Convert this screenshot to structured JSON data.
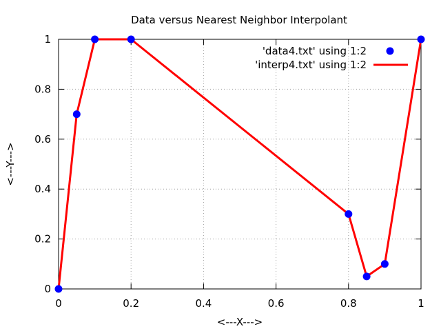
{
  "chart_data": {
    "type": "line",
    "title": "Data versus Nearest Neighbor Interpolant",
    "xlabel": "<---X--->",
    "ylabel": "<---Y--->",
    "xlim": [
      0,
      1
    ],
    "ylim": [
      0,
      1
    ],
    "xticks": [
      "0",
      "0.2",
      "0.4",
      "0.6",
      "0.8",
      "1"
    ],
    "yticks": [
      "0",
      "0.2",
      "0.4",
      "0.6",
      "0.8",
      "1"
    ],
    "grid": true,
    "legend_position": "top-right",
    "series": [
      {
        "name": "'data4.txt' using 1:2",
        "style": "points",
        "color": "#0000ff",
        "x": [
          0,
          0.05,
          0.1,
          0.2,
          0.8,
          0.85,
          0.9,
          1.0
        ],
        "y": [
          0,
          0.7,
          1.0,
          1.0,
          0.3,
          0.05,
          0.1,
          1.0
        ]
      },
      {
        "name": "'interp4.txt' using 1:2",
        "style": "line",
        "color": "#ff0000",
        "x": [
          0,
          0.05,
          0.1,
          0.2,
          0.8,
          0.85,
          0.9,
          1.0
        ],
        "y": [
          0,
          0.7,
          1.0,
          1.0,
          0.3,
          0.05,
          0.1,
          1.0
        ]
      }
    ]
  }
}
